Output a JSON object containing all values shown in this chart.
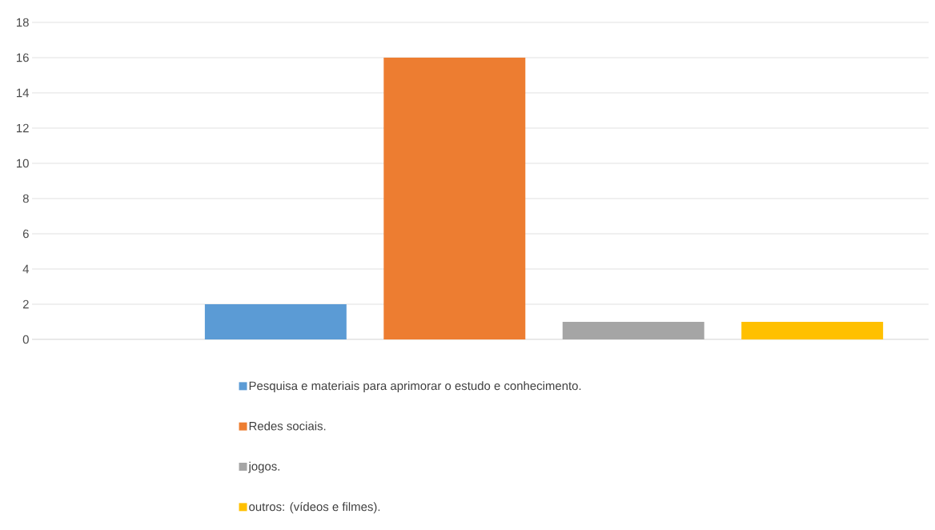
{
  "chart_data": {
    "type": "bar",
    "categories": [
      null
    ],
    "series": [
      {
        "name": "Pesquisa e materiais para aprimorar o estudo e conhecimento.",
        "color": "#5b9bd5",
        "values": [
          2
        ]
      },
      {
        "name": "Redes sociais.",
        "color": "#ed7d31",
        "values": [
          16
        ]
      },
      {
        "name": "jogos.",
        "color": "#a5a5a5",
        "values": [
          1
        ]
      },
      {
        "name": "outros: (vídeos e filmes).",
        "color": "#ffc000",
        "values": [
          1
        ]
      }
    ],
    "ylim": [
      0,
      18
    ],
    "yticks": [
      0,
      2,
      4,
      6,
      8,
      10,
      12,
      14,
      16,
      18
    ],
    "grid": "y",
    "legend": "bottom"
  }
}
